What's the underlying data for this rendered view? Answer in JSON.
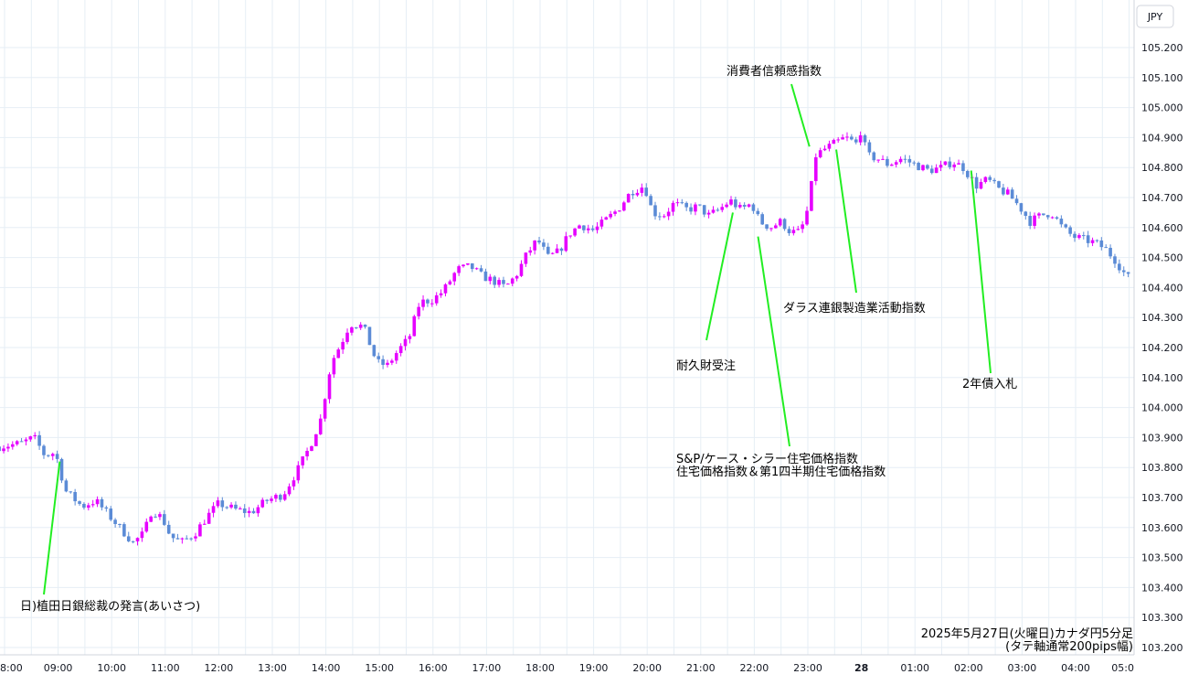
{
  "chart_data": {
    "type": "candlestick",
    "currency_label": "JPY",
    "caption_line1": "2025年5月27日(火曜日)カナダ円5分足",
    "caption_line2": "(タテ軸通常200pips幅)",
    "ylim": [
      103.17,
      105.33
    ],
    "y_ticks": [
      "105.200",
      "105.100",
      "105.000",
      "104.900",
      "104.800",
      "104.700",
      "104.600",
      "104.500",
      "104.400",
      "104.300",
      "104.200",
      "104.100",
      "104.000",
      "103.900",
      "103.800",
      "103.700",
      "103.600",
      "103.500",
      "103.400",
      "103.300",
      "103.200"
    ],
    "x_ticks": [
      {
        "label": "8:00",
        "t": 0
      },
      {
        "label": "09:00",
        "t": 1
      },
      {
        "label": "10:00",
        "t": 2
      },
      {
        "label": "11:00",
        "t": 3
      },
      {
        "label": "12:00",
        "t": 4
      },
      {
        "label": "13:00",
        "t": 5
      },
      {
        "label": "14:00",
        "t": 6
      },
      {
        "label": "15:00",
        "t": 7
      },
      {
        "label": "16:00",
        "t": 8
      },
      {
        "label": "17:00",
        "t": 9
      },
      {
        "label": "18:00",
        "t": 10
      },
      {
        "label": "19:00",
        "t": 11
      },
      {
        "label": "20:00",
        "t": 12
      },
      {
        "label": "21:00",
        "t": 13
      },
      {
        "label": "22:00",
        "t": 14
      },
      {
        "label": "23:00",
        "t": 15
      },
      {
        "label": "28",
        "t": 16,
        "bold": true
      },
      {
        "label": "01:00",
        "t": 17
      },
      {
        "label": "02:00",
        "t": 18
      },
      {
        "label": "03:00",
        "t": 19
      },
      {
        "label": "04:00",
        "t": 20
      },
      {
        "label": "05:0",
        "t": 21
      }
    ],
    "price_path": [
      [
        -0.1,
        103.87
      ],
      [
        0.3,
        103.88
      ],
      [
        0.55,
        103.9
      ],
      [
        0.75,
        103.84
      ],
      [
        0.95,
        103.85
      ],
      [
        1.05,
        103.78
      ],
      [
        1.15,
        103.72
      ],
      [
        1.45,
        103.67
      ],
      [
        1.7,
        103.69
      ],
      [
        2.0,
        103.63
      ],
      [
        2.2,
        103.59
      ],
      [
        2.4,
        103.55
      ],
      [
        2.6,
        103.58
      ],
      [
        2.75,
        103.66
      ],
      [
        2.95,
        103.63
      ],
      [
        3.1,
        103.57
      ],
      [
        3.3,
        103.55
      ],
      [
        3.55,
        103.58
      ],
      [
        3.8,
        103.64
      ],
      [
        4.0,
        103.68
      ],
      [
        4.3,
        103.66
      ],
      [
        4.6,
        103.65
      ],
      [
        4.9,
        103.69
      ],
      [
        5.2,
        103.71
      ],
      [
        5.5,
        103.8
      ],
      [
        5.7,
        103.87
      ],
      [
        5.9,
        103.96
      ],
      [
        6.1,
        104.15
      ],
      [
        6.3,
        104.22
      ],
      [
        6.45,
        104.28
      ],
      [
        6.7,
        104.27
      ],
      [
        6.95,
        104.15
      ],
      [
        7.15,
        104.14
      ],
      [
        7.35,
        104.19
      ],
      [
        7.55,
        104.23
      ],
      [
        7.75,
        104.35
      ],
      [
        8.0,
        104.36
      ],
      [
        8.2,
        104.39
      ],
      [
        8.45,
        104.46
      ],
      [
        8.7,
        104.47
      ],
      [
        8.9,
        104.44
      ],
      [
        9.15,
        104.42
      ],
      [
        9.35,
        104.4
      ],
      [
        9.55,
        104.44
      ],
      [
        9.75,
        104.51
      ],
      [
        9.95,
        104.56
      ],
      [
        10.15,
        104.5
      ],
      [
        10.35,
        104.52
      ],
      [
        10.55,
        104.58
      ],
      [
        10.75,
        104.61
      ],
      [
        11.0,
        104.59
      ],
      [
        11.2,
        104.62
      ],
      [
        11.45,
        104.66
      ],
      [
        11.7,
        104.72
      ],
      [
        11.95,
        104.74
      ],
      [
        12.1,
        104.65
      ],
      [
        12.3,
        104.64
      ],
      [
        12.5,
        104.68
      ],
      [
        12.75,
        104.66
      ],
      [
        12.95,
        104.67
      ],
      [
        13.15,
        104.64
      ],
      [
        13.35,
        104.66
      ],
      [
        13.55,
        104.69
      ],
      [
        13.75,
        104.66
      ],
      [
        13.95,
        104.68
      ],
      [
        14.1,
        104.62
      ],
      [
        14.3,
        104.6
      ],
      [
        14.5,
        104.62
      ],
      [
        14.65,
        104.59
      ],
      [
        14.8,
        104.58
      ],
      [
        14.95,
        104.62
      ],
      [
        15.05,
        104.72
      ],
      [
        15.15,
        104.84
      ],
      [
        15.3,
        104.86
      ],
      [
        15.5,
        104.88
      ],
      [
        15.7,
        104.9
      ],
      [
        15.9,
        104.88
      ],
      [
        16.0,
        104.93
      ],
      [
        16.1,
        104.84
      ],
      [
        16.3,
        104.83
      ],
      [
        16.5,
        104.81
      ],
      [
        16.75,
        104.83
      ],
      [
        17.0,
        104.81
      ],
      [
        17.25,
        104.79
      ],
      [
        17.5,
        104.8
      ],
      [
        17.7,
        104.82
      ],
      [
        17.9,
        104.8
      ],
      [
        18.15,
        104.74
      ],
      [
        18.35,
        104.76
      ],
      [
        18.55,
        104.73
      ],
      [
        18.75,
        104.71
      ],
      [
        18.95,
        104.67
      ],
      [
        19.15,
        104.62
      ],
      [
        19.35,
        104.64
      ],
      [
        19.55,
        104.65
      ],
      [
        19.75,
        104.6
      ],
      [
        19.95,
        104.57
      ],
      [
        20.15,
        104.56
      ],
      [
        20.35,
        104.55
      ],
      [
        20.55,
        104.53
      ],
      [
        20.75,
        104.49
      ],
      [
        20.9,
        104.45
      ],
      [
        21.05,
        104.42
      ]
    ],
    "annotations": [
      {
        "id": "ueda",
        "lines": [
          "日)植田日銀総裁の発言(あいさつ)"
        ],
        "time": 1.03,
        "price": 103.82,
        "text_x": 22,
        "text_y": 667,
        "lead_y": 650,
        "anchor": "start"
      },
      {
        "id": "durable",
        "lines": [
          "耐久財受注"
        ],
        "time": 13.6,
        "price": 104.65,
        "text_x": 740,
        "text_y": 404,
        "lead_y": 372,
        "anchor": "start"
      },
      {
        "id": "case_shiller",
        "lines": [
          "S&P/ケース・シラー住宅価格指数",
          "住宅価格指数＆第1四半期住宅価格指数"
        ],
        "time": 14.07,
        "price": 104.57,
        "text_x": 740,
        "text_y": 506,
        "lead_y": 488,
        "anchor": "start"
      },
      {
        "id": "conf",
        "lines": [
          "消費者信頼感指数"
        ],
        "time": 15.03,
        "price": 104.87,
        "text_x": 795,
        "text_y": 82,
        "lead_y": 92,
        "anchor": "start"
      },
      {
        "id": "dallas",
        "lines": [
          "ダラス連銀製造業活動指数"
        ],
        "time": 15.53,
        "price": 104.86,
        "text_x": 857,
        "text_y": 341,
        "lead_y": 320,
        "anchor": "start"
      },
      {
        "id": "bond",
        "lines": [
          "2年債入札"
        ],
        "time": 18.05,
        "price": 104.79,
        "text_x": 1053,
        "text_y": 424,
        "lead_y": 408,
        "anchor": "start"
      }
    ],
    "colors": {
      "up": "#e600ff",
      "down": "#5b8bd6",
      "grid": "#e6eef5",
      "lead": "#22ee22"
    },
    "grid": true
  }
}
